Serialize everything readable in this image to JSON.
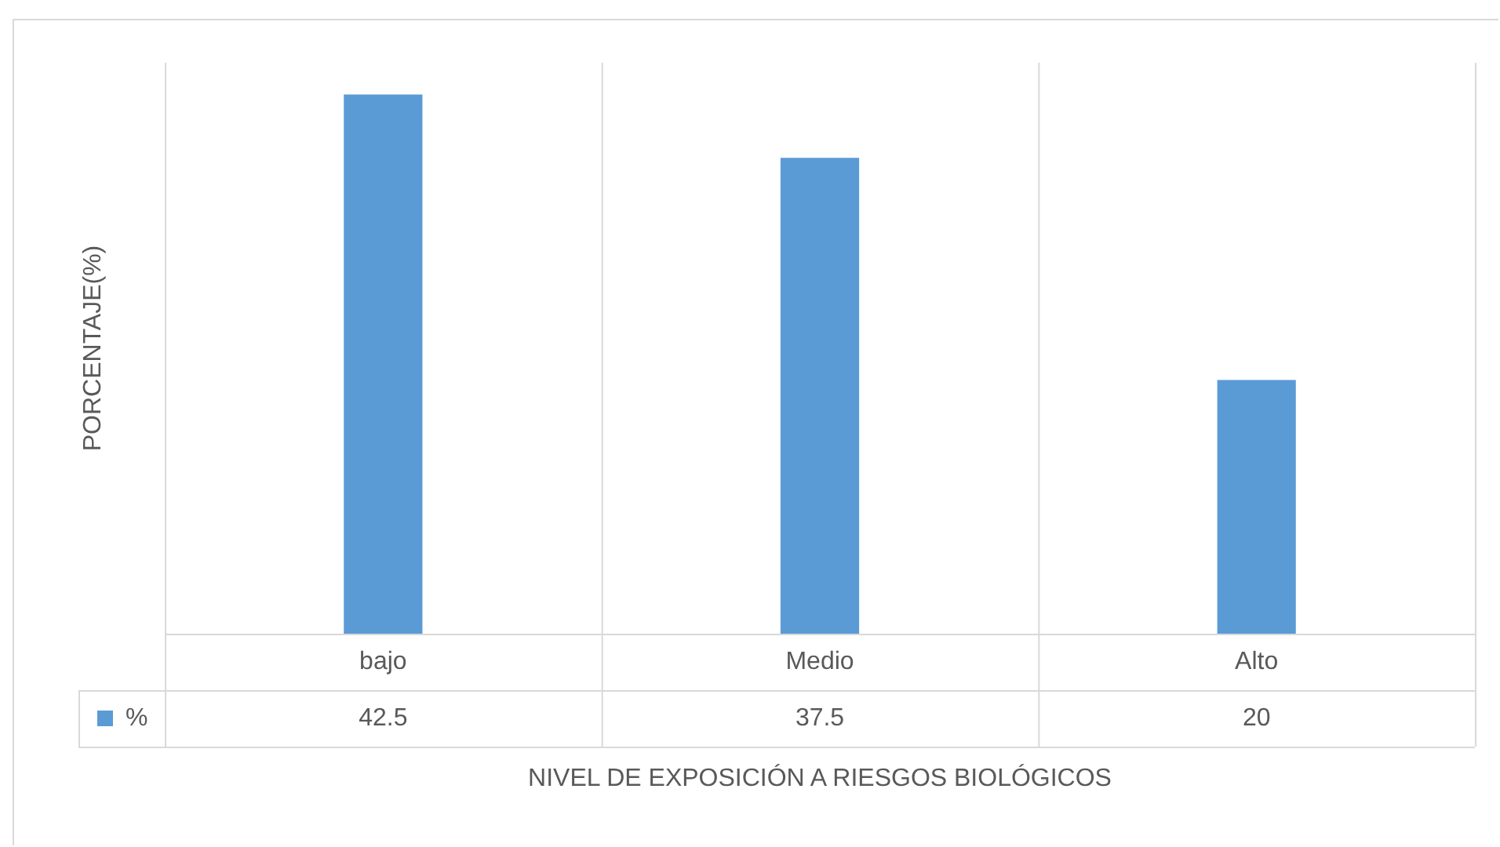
{
  "chart_data": {
    "type": "bar",
    "xlabel": "NIVEL DE EXPOSICIÓN A RIESGOS BIOLÓGICOS",
    "ylabel": "PORCENTAJE(%)",
    "categories": [
      "bajo",
      "Medio",
      "Alto"
    ],
    "series": [
      {
        "name": "%",
        "color": "#5b9bd5",
        "values": [
          42.5,
          37.5,
          20
        ]
      }
    ],
    "ylim": [
      0,
      45
    ],
    "grid": "x",
    "tick_labels": "x",
    "data_labels": true
  }
}
